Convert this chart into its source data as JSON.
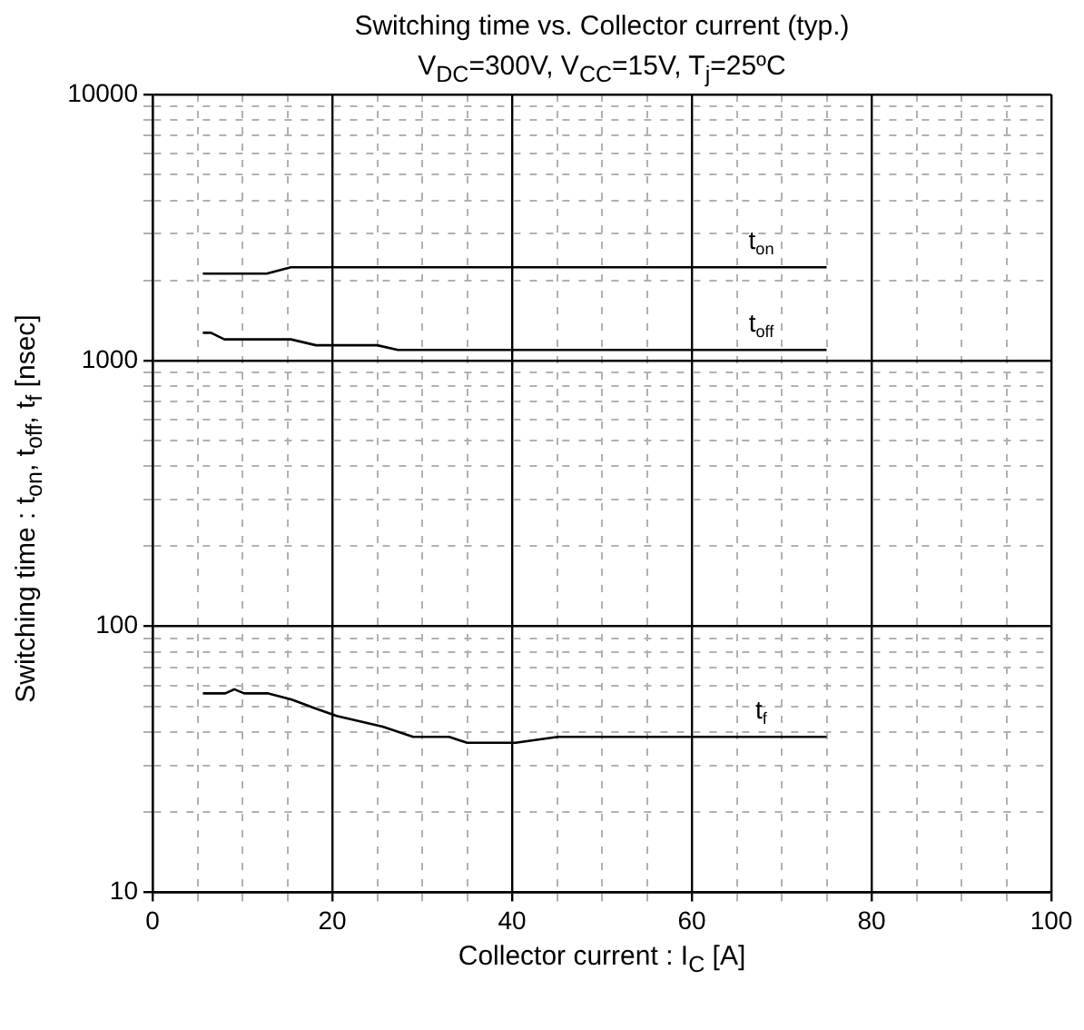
{
  "chart_data": {
    "type": "line",
    "title": "Switching time vs. Collector current (typ.)",
    "subtitle": "V$_{DC}$=300V, V$_{CC}$=15V, T$_{j}$=25ºC",
    "xlabel": "Collector current : I$_{C}$ [A]",
    "ylabel": "Switching time : t$_{on}$, t$_{off}$, t$_{f}$ [nsec]",
    "log": "y",
    "grid": true,
    "legend": false,
    "marker": "none",
    "line_style": "solid",
    "xlim": [
      0,
      100
    ],
    "xticks": [
      0,
      {
        "value": 5,
        "label": null
      },
      {
        "value": 10,
        "label": null
      },
      {
        "value": 15,
        "label": null
      },
      20,
      {
        "value": 25,
        "label": null
      },
      {
        "value": 30,
        "label": null
      },
      {
        "value": 35,
        "label": null
      },
      40,
      {
        "value": 45,
        "label": null
      },
      {
        "value": 50,
        "label": null
      },
      {
        "value": 55,
        "label": null
      },
      60,
      {
        "value": 65,
        "label": null
      },
      {
        "value": 70,
        "label": null
      },
      {
        "value": 75,
        "label": null
      },
      80,
      {
        "value": 85,
        "label": null
      },
      {
        "value": 90,
        "label": null
      },
      {
        "value": 95,
        "label": null
      },
      100
    ],
    "ylim": [
      10,
      10000
    ],
    "yticks": [
      10,
      {
        "value": 20,
        "label": null
      },
      {
        "value": 30,
        "label": null
      },
      {
        "value": 40,
        "label": null
      },
      {
        "value": 50,
        "label": null
      },
      {
        "value": 60,
        "label": null
      },
      {
        "value": 70,
        "label": null
      },
      {
        "value": 80,
        "label": null
      },
      {
        "value": 90,
        "label": null
      },
      100,
      {
        "value": 200,
        "label": null
      },
      {
        "value": 300,
        "label": null
      },
      {
        "value": 400,
        "label": null
      },
      {
        "value": 500,
        "label": null
      },
      {
        "value": 600,
        "label": null
      },
      {
        "value": 700,
        "label": null
      },
      {
        "value": 800,
        "label": null
      },
      {
        "value": 900,
        "label": null
      },
      1000,
      {
        "value": 2000,
        "label": null
      },
      {
        "value": 3000,
        "label": null
      },
      {
        "value": 4000,
        "label": null
      },
      {
        "value": 5000,
        "label": null
      },
      {
        "value": 6000,
        "label": null
      },
      {
        "value": 7000,
        "label": null
      },
      {
        "value": 8000,
        "label": null
      },
      {
        "value": 9000,
        "label": null
      },
      10000
    ],
    "series": [
      {
        "name": "t$_{on}$",
        "color": "#000000",
        "x": [
          5.6,
          12.7,
          15.4,
          75
        ],
        "values": [
          2120,
          2120,
          2240,
          2240
        ]
      },
      {
        "name": "t$_{off}$",
        "color": "#000000",
        "x": [
          5.6,
          6.5,
          8,
          15.4,
          18.2,
          25,
          27.3,
          75
        ],
        "values": [
          1270,
          1270,
          1200,
          1200,
          1140,
          1140,
          1095,
          1095
        ]
      },
      {
        "name": "t$_{f}$",
        "color": "#000000",
        "x": [
          5.6,
          8.1,
          9.1,
          10.2,
          12.8,
          15.5,
          18.2,
          20.5,
          25.6,
          29,
          33,
          35,
          40.4,
          45.1,
          75
        ],
        "values": [
          56,
          56,
          58,
          56,
          56,
          53,
          49,
          46,
          42,
          38.4,
          38.4,
          36.5,
          36.5,
          38.4,
          38.4
        ]
      }
    ]
  }
}
